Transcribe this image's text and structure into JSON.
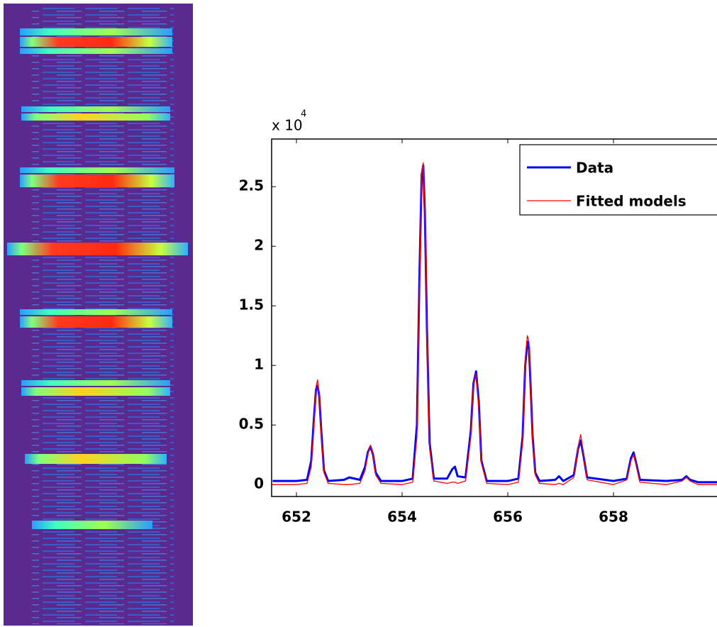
{
  "chart_data": {
    "type": "line",
    "y_multiplier": "x 10",
    "y_multiplier_exponent": "4",
    "x": [
      651.55,
      652.0,
      652.2,
      652.28,
      652.33,
      652.37,
      652.4,
      652.43,
      652.47,
      652.52,
      652.6,
      652.9,
      653.0,
      653.2,
      653.3,
      653.35,
      653.4,
      653.45,
      653.5,
      653.6,
      654.0,
      654.2,
      654.28,
      654.33,
      654.37,
      654.4,
      654.43,
      654.47,
      654.52,
      654.6,
      654.85,
      654.95,
      655.0,
      655.05,
      655.2,
      655.3,
      655.35,
      655.4,
      655.45,
      655.5,
      655.6,
      656.0,
      656.2,
      656.28,
      656.33,
      656.37,
      656.4,
      656.43,
      656.47,
      656.52,
      656.6,
      656.9,
      656.97,
      657.05,
      657.25,
      657.33,
      657.38,
      657.43,
      657.5,
      658.0,
      658.25,
      658.33,
      658.38,
      658.43,
      658.5,
      659.0,
      659.3,
      659.38,
      659.45,
      659.6,
      660.0
    ],
    "series": [
      {
        "name": "Data",
        "color": "#0000ff",
        "width": 3,
        "values": [
          0.03,
          0.03,
          0.04,
          0.2,
          0.55,
          0.8,
          0.83,
          0.75,
          0.45,
          0.12,
          0.03,
          0.04,
          0.06,
          0.04,
          0.15,
          0.27,
          0.32,
          0.25,
          0.1,
          0.03,
          0.03,
          0.05,
          0.5,
          1.8,
          2.6,
          2.68,
          2.3,
          1.3,
          0.35,
          0.05,
          0.05,
          0.13,
          0.15,
          0.07,
          0.06,
          0.45,
          0.85,
          0.95,
          0.7,
          0.2,
          0.03,
          0.03,
          0.05,
          0.4,
          1.0,
          1.2,
          1.15,
          0.85,
          0.4,
          0.1,
          0.03,
          0.04,
          0.07,
          0.03,
          0.08,
          0.3,
          0.37,
          0.25,
          0.06,
          0.03,
          0.05,
          0.22,
          0.27,
          0.18,
          0.04,
          0.03,
          0.04,
          0.07,
          0.04,
          0.02,
          0.02
        ]
      },
      {
        "name": "Fitted models",
        "color": "#ff0000",
        "width": 1.3,
        "values": [
          0.0,
          0.0,
          0.01,
          0.15,
          0.5,
          0.82,
          0.88,
          0.75,
          0.4,
          0.1,
          0.01,
          0.0,
          0.0,
          0.01,
          0.12,
          0.26,
          0.33,
          0.25,
          0.08,
          0.01,
          0.0,
          0.02,
          0.4,
          1.7,
          2.62,
          2.7,
          2.35,
          1.25,
          0.3,
          0.03,
          0.01,
          0.02,
          0.02,
          0.01,
          0.03,
          0.4,
          0.85,
          0.93,
          0.65,
          0.18,
          0.01,
          0.0,
          0.02,
          0.35,
          1.05,
          1.25,
          1.2,
          0.85,
          0.35,
          0.08,
          0.01,
          0.0,
          0.01,
          0.0,
          0.06,
          0.32,
          0.42,
          0.27,
          0.04,
          0.0,
          0.04,
          0.2,
          0.25,
          0.16,
          0.02,
          0.0,
          0.03,
          0.06,
          0.03,
          0.0,
          0.0
        ]
      }
    ],
    "xlim": [
      651.53,
      660
    ],
    "xticks": [
      652,
      654,
      656,
      658
    ],
    "ylim": [
      -0.1,
      2.9
    ],
    "yticks": [
      0,
      0.5,
      1,
      1.5,
      2,
      2.5
    ],
    "legend": "upper right"
  }
}
